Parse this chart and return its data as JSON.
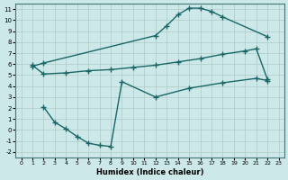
{
  "xlabel": "Humidex (Indice chaleur)",
  "bg_color": "#cce8e8",
  "grid_color": "#b0c8c8",
  "line_color": "#1a6666",
  "xlim": [
    -0.5,
    23.5
  ],
  "ylim": [
    -2.5,
    11.5
  ],
  "xticks": [
    0,
    1,
    2,
    3,
    4,
    5,
    6,
    7,
    8,
    9,
    10,
    11,
    12,
    13,
    14,
    15,
    16,
    17,
    18,
    19,
    20,
    21,
    22,
    23
  ],
  "yticks": [
    -2,
    -1,
    0,
    1,
    2,
    3,
    4,
    5,
    6,
    7,
    8,
    9,
    10,
    11
  ],
  "curve1_x": [
    1,
    2,
    12,
    13,
    14,
    15,
    16,
    17,
    18,
    22
  ],
  "curve1_y": [
    5.8,
    6.1,
    8.6,
    9.5,
    10.5,
    11.1,
    11.1,
    10.8,
    10.3,
    8.5
  ],
  "curve2_x": [
    1,
    2,
    4,
    6,
    8,
    10,
    12,
    14,
    16,
    18,
    20,
    21,
    22
  ],
  "curve2_y": [
    5.9,
    5.1,
    5.2,
    5.4,
    5.5,
    5.7,
    5.9,
    6.2,
    6.5,
    6.9,
    7.2,
    7.4,
    4.6
  ],
  "curve3_x": [
    2,
    3,
    4,
    5,
    6,
    7,
    8,
    9,
    12,
    15,
    18,
    21,
    22
  ],
  "curve3_y": [
    2.1,
    0.7,
    0.1,
    -0.6,
    -1.2,
    -1.4,
    -1.5,
    4.4,
    3.0,
    3.8,
    4.3,
    4.7,
    4.5
  ]
}
